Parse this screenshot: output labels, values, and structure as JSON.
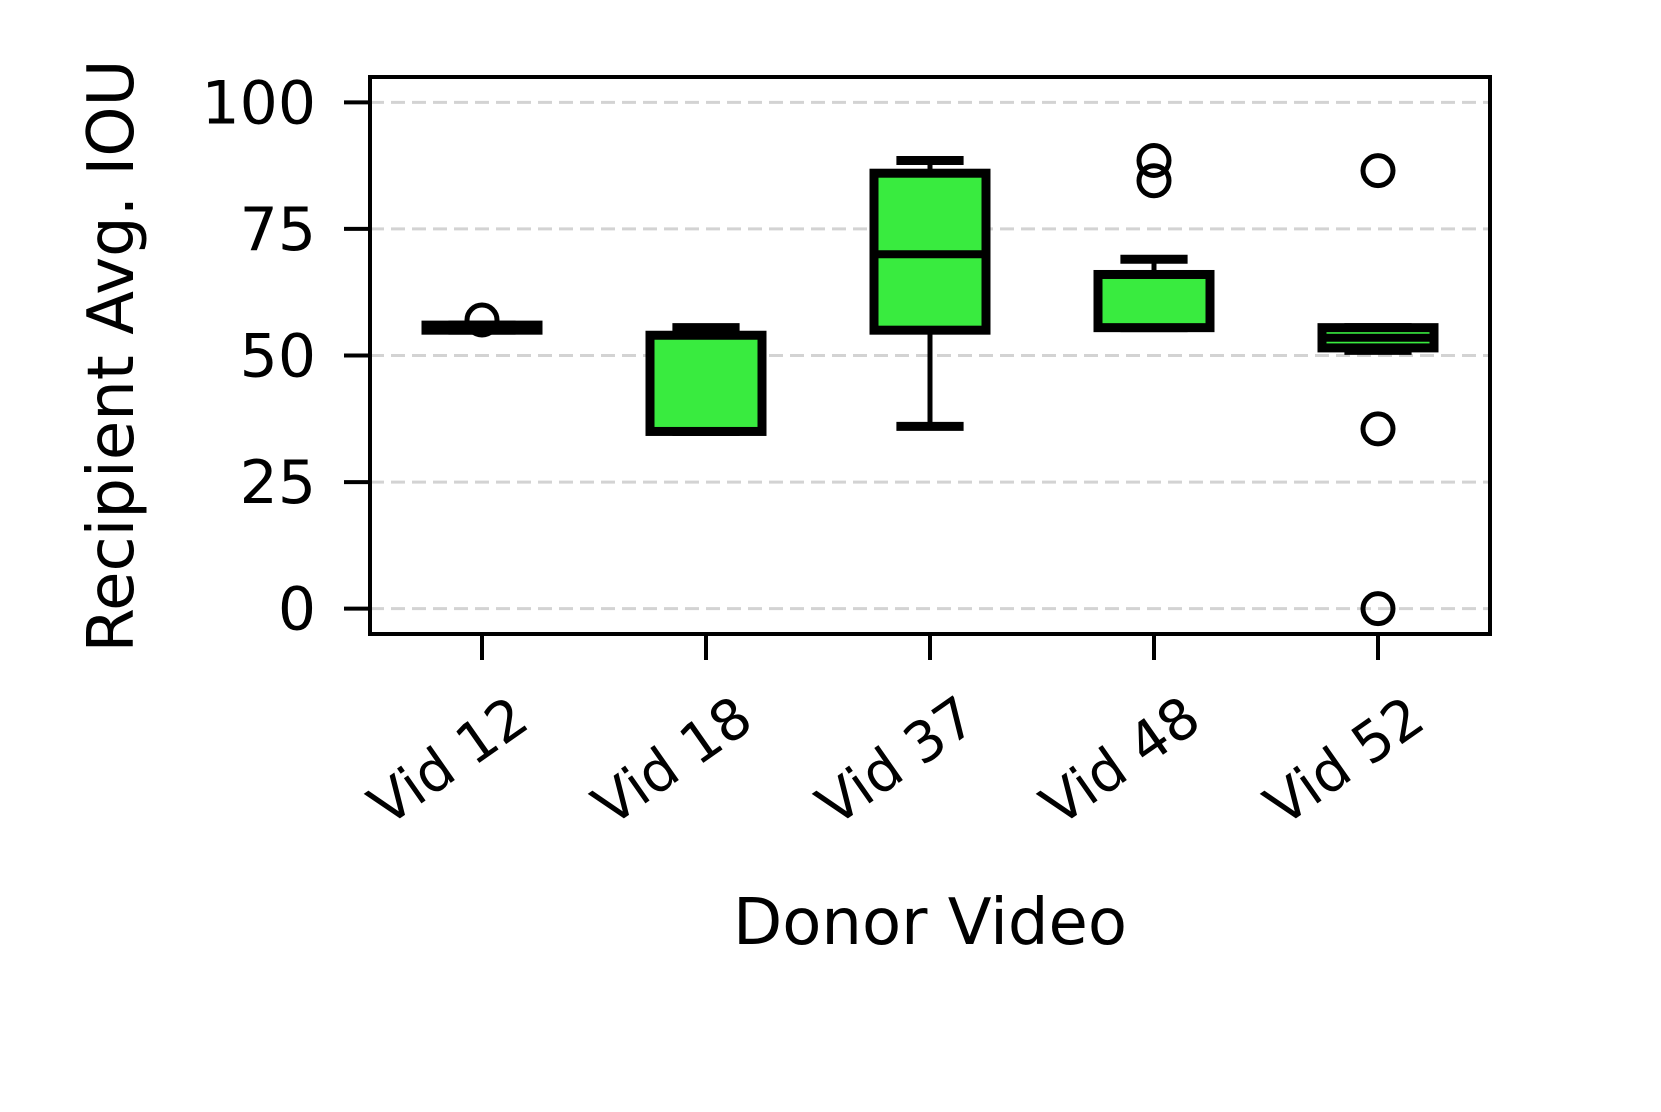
{
  "chart_data": {
    "type": "box",
    "xlabel": "Donor Video",
    "ylabel": "Recipient Avg. IOU",
    "ylim": [
      -5,
      105
    ],
    "yticks": [
      0,
      25,
      50,
      75,
      100
    ],
    "ytick_labels": [
      "0",
      "25",
      "50",
      "75",
      "100"
    ],
    "grid": "horizontal dashed",
    "colors": {
      "box_fill": "#39eb3f",
      "box_edge": "#000000",
      "grid": "#d3d3d3"
    },
    "categories": [
      "Vid 12",
      "Vid 18",
      "Vid 37",
      "Vid 48",
      "Vid 52"
    ],
    "boxes": [
      {
        "category": "Vid 12",
        "whisker_low": 55,
        "q1": 55,
        "median": 55.5,
        "q3": 56,
        "whisker_high": 56,
        "outliers": [
          57
        ]
      },
      {
        "category": "Vid 18",
        "whisker_low": 35,
        "q1": 35,
        "median": 35,
        "q3": 54,
        "whisker_high": 55.5,
        "outliers": []
      },
      {
        "category": "Vid 37",
        "whisker_low": 36,
        "q1": 55,
        "median": 70,
        "q3": 86,
        "whisker_high": 88.5,
        "outliers": []
      },
      {
        "category": "Vid 48",
        "whisker_low": 55.5,
        "q1": 55.5,
        "median": 55.5,
        "q3": 66,
        "whisker_high": 69,
        "outliers": [
          84.5,
          88.5
        ]
      },
      {
        "category": "Vid 52",
        "whisker_low": 51,
        "q1": 51.5,
        "median": 53.5,
        "q3": 55.5,
        "whisker_high": 55.5,
        "outliers": [
          0,
          35.5,
          86.5
        ]
      }
    ]
  }
}
